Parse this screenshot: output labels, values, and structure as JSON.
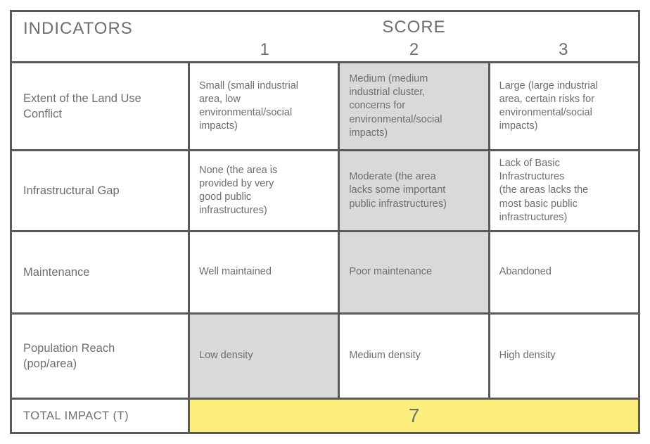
{
  "header": {
    "indicators_label": "INDICATORS",
    "score_label": "SCORE",
    "score_columns": [
      "1",
      "2",
      "3"
    ]
  },
  "rows": [
    {
      "indicator": "Extent of the Land Use\nConflict",
      "cells": [
        {
          "text": "Small (small industrial\narea, low\nenvironmental/social\nimpacts)",
          "selected": false
        },
        {
          "text": "Medium (medium\nindustrial cluster,\nconcerns for\nenvironmental/social\nimpacts)",
          "selected": true
        },
        {
          "text": "Large (large industrial\narea, certain risks for\nenvironmental/social\nimpacts)",
          "selected": false
        }
      ]
    },
    {
      "indicator": "Infrastructural Gap",
      "cells": [
        {
          "text": "None (the area is\nprovided by very\ngood public\ninfrastructures)",
          "selected": false
        },
        {
          "text": "Moderate (the area\nlacks some important\npublic infrastructures)",
          "selected": true
        },
        {
          "text": "Lack of Basic\nInfrastructures\n(the areas lacks the\nmost basic public\ninfrastructures)",
          "selected": false
        }
      ]
    },
    {
      "indicator": "Maintenance",
      "cells": [
        {
          "text": "Well maintained",
          "selected": false
        },
        {
          "text": "Poor maintenance",
          "selected": true
        },
        {
          "text": "Abandoned",
          "selected": false
        }
      ]
    },
    {
      "indicator": "Population Reach\n(pop/area)",
      "cells": [
        {
          "text": "Low density",
          "selected": true
        },
        {
          "text": "Medium density",
          "selected": false
        },
        {
          "text": "High density",
          "selected": false
        }
      ]
    }
  ],
  "total": {
    "label": "TOTAL IMPACT (T)",
    "value": "7"
  },
  "colors": {
    "selected_fill": "#d9d9d9",
    "total_fill": "#fbee7d",
    "border": "#595959",
    "text": "#6e6e6e"
  }
}
